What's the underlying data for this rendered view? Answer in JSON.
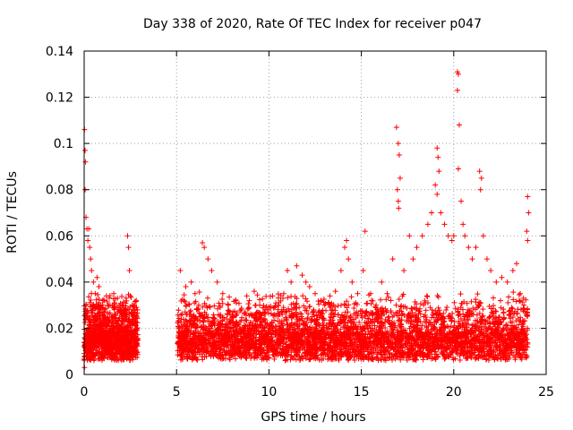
{
  "chart_data": {
    "type": "scatter",
    "title": "Day 338 of 2020, Rate Of TEC Index for receiver p047",
    "xlabel": "GPS time / hours",
    "ylabel": "ROTI / TECUs",
    "xlim": [
      0,
      25
    ],
    "ylim": [
      0,
      0.14
    ],
    "x_ticks": [
      "0",
      "5",
      "10",
      "15",
      "20",
      "25"
    ],
    "y_ticks": [
      "0",
      "0.02",
      "0.04",
      "0.06",
      "0.08",
      "0.1",
      "0.12",
      "0.14"
    ],
    "grid": true,
    "marker": "+",
    "color": "#ff0000",
    "series": [
      {
        "points": [
          [
            0.02,
            0.106
          ],
          [
            0.05,
            0.097
          ],
          [
            0.07,
            0.092
          ],
          [
            0.05,
            0.08
          ],
          [
            0.1,
            0.068
          ],
          [
            0.15,
            0.063
          ],
          [
            0.2,
            0.058
          ],
          [
            0.25,
            0.063
          ],
          [
            0.3,
            0.055
          ],
          [
            0.35,
            0.05
          ],
          [
            0.4,
            0.045
          ],
          [
            0.5,
            0.04
          ],
          [
            0.6,
            0.035
          ],
          [
            0.7,
            0.042
          ],
          [
            0.8,
            0.038
          ],
          [
            0.9,
            0.03
          ],
          [
            1.0,
            0.032
          ],
          [
            1.1,
            0.028
          ],
          [
            1.2,
            0.034
          ],
          [
            1.4,
            0.03
          ],
          [
            1.6,
            0.035
          ],
          [
            1.8,
            0.033
          ],
          [
            2.0,
            0.028
          ],
          [
            2.2,
            0.025
          ],
          [
            2.35,
            0.06
          ],
          [
            2.4,
            0.055
          ],
          [
            2.45,
            0.045
          ],
          [
            2.5,
            0.034
          ],
          [
            2.6,
            0.03
          ],
          [
            2.7,
            0.025
          ],
          [
            0.02,
            0.003
          ],
          [
            0.3,
            0.02
          ],
          [
            0.6,
            0.015
          ],
          [
            1.0,
            0.012
          ],
          [
            1.5,
            0.014
          ],
          [
            2.0,
            0.013
          ],
          [
            2.5,
            0.012
          ],
          [
            2.8,
            0.01
          ],
          [
            5.2,
            0.045
          ],
          [
            5.5,
            0.038
          ],
          [
            5.8,
            0.04
          ],
          [
            6.0,
            0.035
          ],
          [
            6.2,
            0.03
          ],
          [
            6.4,
            0.057
          ],
          [
            6.5,
            0.055
          ],
          [
            6.7,
            0.05
          ],
          [
            6.9,
            0.045
          ],
          [
            7.2,
            0.04
          ],
          [
            7.5,
            0.035
          ],
          [
            7.8,
            0.03
          ],
          [
            8.2,
            0.032
          ],
          [
            8.5,
            0.028
          ],
          [
            8.8,
            0.034
          ],
          [
            9.2,
            0.036
          ],
          [
            9.5,
            0.03
          ],
          [
            9.8,
            0.028
          ],
          [
            10.2,
            0.034
          ],
          [
            10.5,
            0.03
          ],
          [
            10.8,
            0.035
          ],
          [
            11.0,
            0.045
          ],
          [
            11.2,
            0.04
          ],
          [
            11.5,
            0.047
          ],
          [
            11.8,
            0.043
          ],
          [
            12.0,
            0.04
          ],
          [
            12.2,
            0.038
          ],
          [
            12.5,
            0.035
          ],
          [
            12.8,
            0.032
          ],
          [
            13.0,
            0.03
          ],
          [
            13.3,
            0.034
          ],
          [
            13.6,
            0.036
          ],
          [
            13.9,
            0.045
          ],
          [
            14.1,
            0.055
          ],
          [
            14.2,
            0.058
          ],
          [
            14.3,
            0.05
          ],
          [
            14.5,
            0.04
          ],
          [
            14.8,
            0.035
          ],
          [
            15.1,
            0.045
          ],
          [
            15.2,
            0.062
          ],
          [
            15.5,
            0.035
          ],
          [
            15.8,
            0.03
          ],
          [
            16.1,
            0.04
          ],
          [
            16.4,
            0.035
          ],
          [
            16.7,
            0.05
          ],
          [
            16.9,
            0.107
          ],
          [
            17.0,
            0.1
          ],
          [
            17.05,
            0.095
          ],
          [
            17.1,
            0.085
          ],
          [
            16.95,
            0.08
          ],
          [
            17.0,
            0.075
          ],
          [
            17.02,
            0.072
          ],
          [
            17.3,
            0.045
          ],
          [
            17.6,
            0.06
          ],
          [
            17.8,
            0.05
          ],
          [
            18.0,
            0.055
          ],
          [
            18.3,
            0.06
          ],
          [
            18.6,
            0.065
          ],
          [
            18.8,
            0.07
          ],
          [
            19.0,
            0.082
          ],
          [
            19.1,
            0.098
          ],
          [
            19.15,
            0.094
          ],
          [
            19.2,
            0.088
          ],
          [
            19.1,
            0.078
          ],
          [
            19.3,
            0.07
          ],
          [
            19.5,
            0.065
          ],
          [
            19.7,
            0.06
          ],
          [
            19.9,
            0.058
          ],
          [
            20.0,
            0.06
          ],
          [
            20.2,
            0.131
          ],
          [
            20.25,
            0.13
          ],
          [
            20.2,
            0.123
          ],
          [
            20.3,
            0.108
          ],
          [
            20.25,
            0.089
          ],
          [
            20.4,
            0.075
          ],
          [
            20.5,
            0.065
          ],
          [
            20.6,
            0.06
          ],
          [
            20.8,
            0.055
          ],
          [
            21.0,
            0.05
          ],
          [
            21.2,
            0.055
          ],
          [
            21.4,
            0.088
          ],
          [
            21.5,
            0.085
          ],
          [
            21.45,
            0.08
          ],
          [
            21.6,
            0.06
          ],
          [
            21.8,
            0.05
          ],
          [
            22.0,
            0.045
          ],
          [
            22.3,
            0.04
          ],
          [
            22.6,
            0.042
          ],
          [
            22.9,
            0.04
          ],
          [
            23.2,
            0.045
          ],
          [
            23.4,
            0.048
          ],
          [
            23.6,
            0.035
          ],
          [
            23.8,
            0.03
          ],
          [
            24.0,
            0.077
          ],
          [
            24.05,
            0.07
          ],
          [
            23.95,
            0.062
          ],
          [
            24.0,
            0.058
          ],
          [
            5.5,
            0.012
          ],
          [
            7.0,
            0.01
          ],
          [
            9.0,
            0.012
          ],
          [
            11.0,
            0.011
          ],
          [
            13.0,
            0.013
          ],
          [
            15.0,
            0.012
          ],
          [
            17.0,
            0.014
          ],
          [
            19.0,
            0.013
          ],
          [
            21.0,
            0.015
          ],
          [
            23.0,
            0.012
          ]
        ]
      }
    ],
    "dense_band": {
      "segments": [
        {
          "x0": 0.0,
          "x1": 2.9,
          "y_low": 0.003,
          "y_high": 0.03,
          "count": 1300
        },
        {
          "x0": 5.05,
          "x1": 24.0,
          "y_low": 0.003,
          "y_high": 0.03,
          "count": 4200
        }
      ]
    }
  }
}
